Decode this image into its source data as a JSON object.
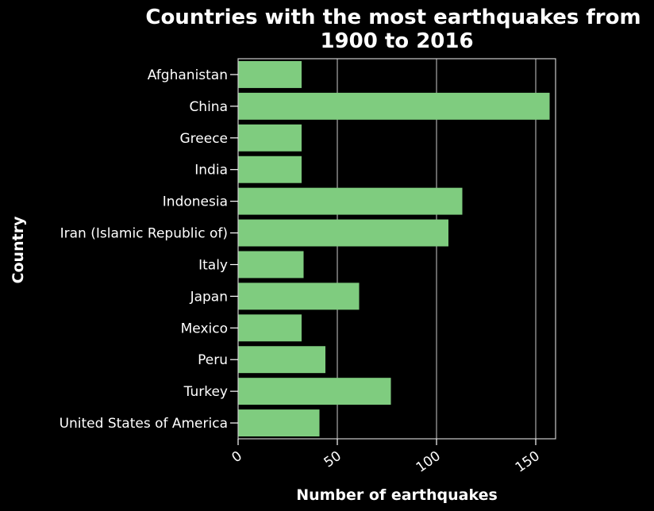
{
  "chart_data": {
    "type": "bar",
    "orientation": "horizontal",
    "title_lines": [
      "Countries with the most earthquakes from",
      "1900 to 2016"
    ],
    "xlabel": "Number of earthquakes",
    "ylabel": "Country",
    "categories": [
      "Afghanistan",
      "China",
      "Greece",
      "India",
      "Indonesia",
      "Iran (Islamic Republic of)",
      "Italy",
      "Japan",
      "Mexico",
      "Peru",
      "Turkey",
      "United States of America"
    ],
    "values": [
      32,
      157,
      32,
      32,
      113,
      106,
      33,
      61,
      32,
      44,
      77,
      41
    ],
    "xlim": [
      0,
      160
    ],
    "xticks": [
      0,
      50,
      100,
      150
    ],
    "x_tick_labels": [
      "0",
      "50",
      "100",
      "150"
    ],
    "grid": {
      "x": true,
      "y": false
    },
    "legend": "none"
  },
  "colors": {
    "background": "#000000",
    "bar": "#7fcc7f",
    "text": "#ffffff",
    "grid": "#aaaaaa",
    "frame": "#cccccc"
  }
}
